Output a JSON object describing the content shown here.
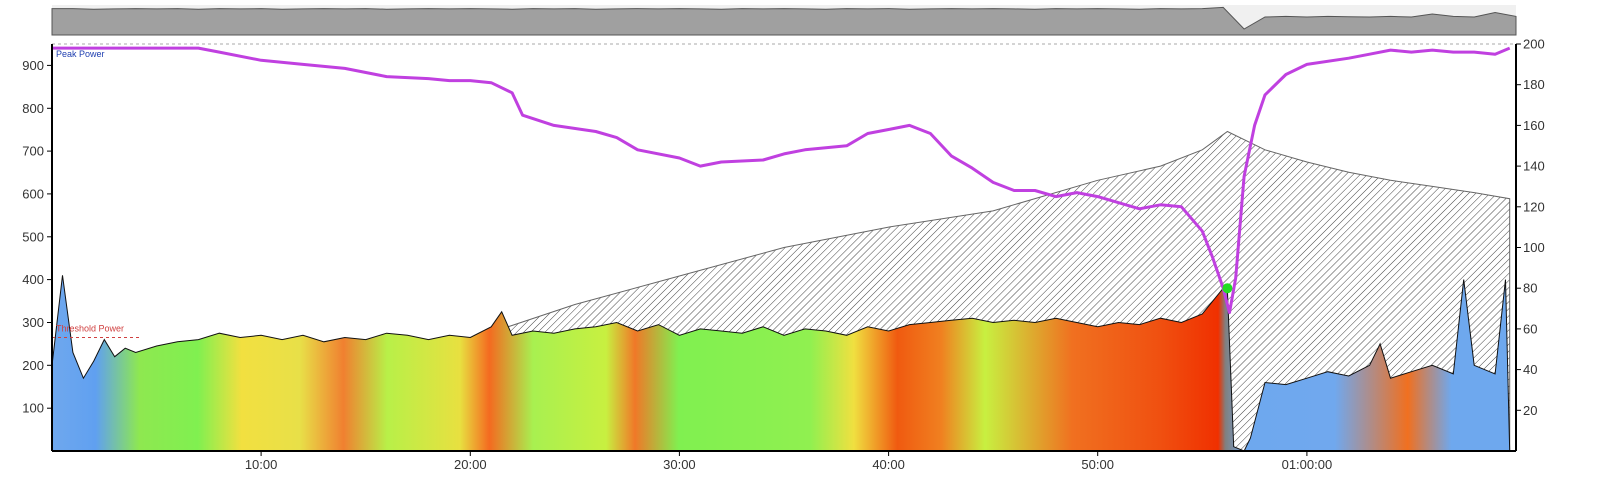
{
  "chart_data": {
    "type": "area",
    "title": "",
    "x_axis": {
      "unit": "minutes",
      "range": [
        0,
        70
      ],
      "tick_values": [
        10,
        20,
        30,
        40,
        50,
        60
      ],
      "tick_labels": [
        "10:00",
        "20:00",
        "30:00",
        "40:00",
        "50:00",
        "01:00:00"
      ]
    },
    "y_axis_left": {
      "range": [
        0,
        950
      ],
      "tick_values": [
        100,
        200,
        300,
        400,
        500,
        600,
        700,
        800,
        900
      ],
      "tick_labels": [
        "100",
        "200",
        "300",
        "400",
        "500",
        "600",
        "700",
        "800",
        "900"
      ]
    },
    "y_axis_right": {
      "range": [
        0,
        200
      ],
      "tick_values": [
        20,
        40,
        60,
        80,
        100,
        120,
        140,
        160,
        180,
        200
      ],
      "tick_labels": [
        "20",
        "40",
        "60",
        "80",
        "100",
        "120",
        "140",
        "160",
        "180",
        "200"
      ]
    },
    "annotations": [
      {
        "label": "Peak Power",
        "y": 950,
        "color": "#1f3fb0"
      },
      {
        "label": "Threshold Power",
        "y": 265,
        "color": "#d04040"
      }
    ],
    "marker": {
      "x": 56.2,
      "y_right": 80,
      "color": "#22dd22"
    },
    "series": [
      {
        "role": "power",
        "axis": "left",
        "fill": "power-zone-gradient",
        "x": [
          0,
          0.5,
          1,
          1.5,
          2,
          2.5,
          3,
          3.5,
          4,
          5,
          6,
          7,
          8,
          9,
          10,
          11,
          12,
          13,
          14,
          15,
          16,
          17,
          18,
          19,
          20,
          21,
          21.5,
          22,
          23,
          24,
          25,
          26,
          27,
          28,
          29,
          30,
          31,
          32,
          33,
          34,
          35,
          36,
          37,
          38,
          39,
          40,
          41,
          42,
          43,
          44,
          45,
          46,
          47,
          48,
          49,
          50,
          51,
          52,
          53,
          54,
          55,
          56,
          56.2,
          56.5,
          57,
          57.3,
          58,
          59,
          60,
          61,
          61.5,
          62,
          63,
          63.5,
          64,
          65,
          66,
          67,
          67.5,
          68,
          69,
          69.5,
          69.7
        ],
        "y": [
          200,
          410,
          230,
          170,
          210,
          260,
          220,
          240,
          230,
          245,
          255,
          260,
          275,
          265,
          270,
          260,
          270,
          255,
          265,
          260,
          275,
          270,
          260,
          270,
          265,
          290,
          325,
          270,
          280,
          275,
          285,
          290,
          300,
          280,
          295,
          270,
          285,
          280,
          275,
          290,
          270,
          285,
          280,
          270,
          290,
          280,
          295,
          300,
          305,
          310,
          300,
          305,
          300,
          310,
          300,
          290,
          300,
          295,
          310,
          300,
          320,
          380,
          375,
          10,
          0,
          30,
          160,
          155,
          170,
          185,
          180,
          175,
          200,
          250,
          170,
          185,
          200,
          180,
          400,
          200,
          180,
          400,
          0
        ]
      },
      {
        "role": "cumulative",
        "axis": "right",
        "fill": "hatched-grey",
        "x": [
          21.5,
          25,
          30,
          35,
          40,
          45,
          50,
          53,
          55,
          56.2,
          58,
          60,
          62,
          64,
          66,
          68,
          69.7
        ],
        "y": [
          60,
          72,
          86,
          100,
          110,
          118,
          133,
          140,
          148,
          157,
          148,
          142,
          137,
          133,
          130,
          127,
          124
        ]
      },
      {
        "role": "hr",
        "axis": "right",
        "color": "#c040e0",
        "x": [
          0,
          4,
          7,
          8,
          10,
          12,
          14,
          16,
          18,
          19,
          20,
          21,
          22,
          22.5,
          24,
          26,
          27,
          28,
          30,
          31,
          32,
          34,
          35,
          36,
          38,
          39,
          40,
          41,
          42,
          43,
          44,
          45,
          46,
          47,
          48,
          49,
          50,
          51,
          52,
          53,
          54,
          55,
          55.5,
          56,
          56.3,
          56.6,
          57,
          57.5,
          58,
          59,
          60,
          62,
          63,
          64,
          65,
          66,
          67,
          68,
          69,
          69.7
        ],
        "y": [
          198,
          198,
          198,
          196,
          192,
          190,
          188,
          184,
          183,
          182,
          182,
          181,
          176,
          165,
          160,
          157,
          154,
          148,
          144,
          140,
          142,
          143,
          146,
          148,
          150,
          156,
          158,
          160,
          156,
          145,
          139,
          132,
          128,
          128,
          125,
          127,
          125,
          122,
          119,
          121,
          120,
          108,
          95,
          80,
          68,
          85,
          135,
          160,
          175,
          185,
          190,
          193,
          195,
          197,
          196,
          197,
          196,
          196,
          195,
          198
        ]
      }
    ],
    "overview": {
      "x_range": [
        0,
        70
      ],
      "level": [
        88,
        88,
        86,
        87,
        88,
        87,
        88,
        86,
        88,
        87,
        88,
        86,
        87,
        88,
        87,
        88,
        86,
        87,
        88,
        87,
        88,
        87,
        86,
        88,
        87,
        88,
        86,
        87,
        88,
        87,
        88,
        87,
        86,
        88,
        87,
        88,
        87,
        86,
        88,
        87,
        88,
        86,
        87,
        88,
        87,
        88,
        87,
        86,
        88,
        87,
        88,
        87,
        86,
        88,
        87,
        88,
        92,
        20,
        60,
        62,
        60,
        62,
        61,
        60,
        62,
        60,
        70,
        62,
        60,
        75,
        62
      ]
    }
  }
}
